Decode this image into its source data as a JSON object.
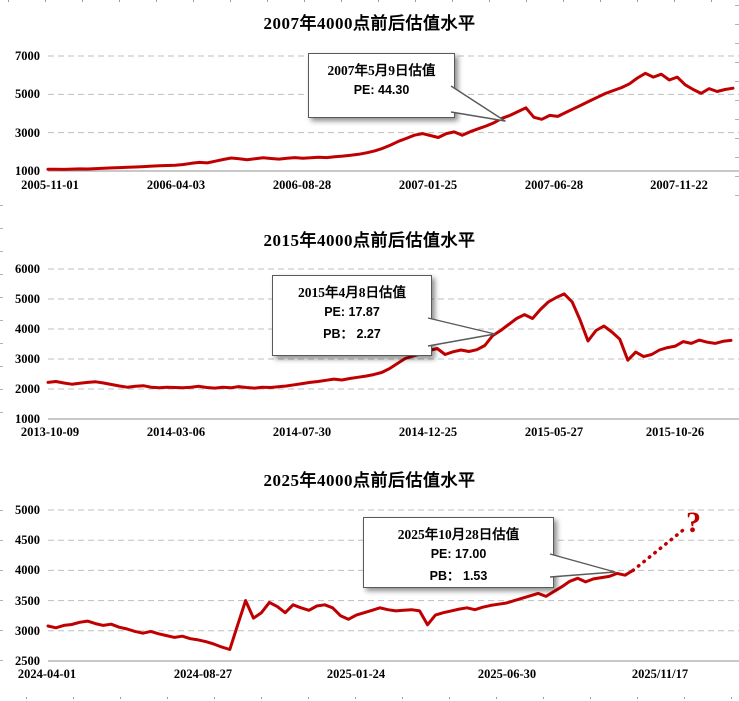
{
  "colors": {
    "line": "#C00000",
    "grid": "#BFBFBF",
    "axis": "#A6A6A6",
    "callout_border": "#595959",
    "question_mark": "#C00000",
    "text": "#000000"
  },
  "chart_data": [
    {
      "id": "chart-2007",
      "type": "line",
      "title": "2007年4000点前后估值水平",
      "ylim": [
        1000,
        7000
      ],
      "y_ticks": [
        7000,
        5000,
        3000,
        1000
      ],
      "x_ticks": [
        "2005-11-01",
        "2006-04-03",
        "2006-08-28",
        "2007-01-25",
        "2007-06-28",
        "2007-11-22"
      ],
      "grid": "dashed-horizontal",
      "values": [
        1090,
        1095,
        1085,
        1100,
        1110,
        1105,
        1125,
        1140,
        1160,
        1175,
        1195,
        1210,
        1230,
        1255,
        1270,
        1285,
        1300,
        1340,
        1400,
        1450,
        1420,
        1510,
        1600,
        1680,
        1640,
        1590,
        1640,
        1690,
        1650,
        1620,
        1660,
        1700,
        1670,
        1690,
        1720,
        1700,
        1740,
        1780,
        1820,
        1870,
        1950,
        2050,
        2180,
        2350,
        2550,
        2700,
        2870,
        2950,
        2850,
        2750,
        2950,
        3040,
        2860,
        3050,
        3200,
        3350,
        3520,
        3750,
        3900,
        4100,
        4300,
        3800,
        3700,
        3900,
        3850,
        4050,
        4250,
        4450,
        4650,
        4850,
        5050,
        5200,
        5350,
        5550,
        5850,
        6100,
        5900,
        6050,
        5750,
        5900,
        5500,
        5250,
        5050,
        5300,
        5150,
        5250,
        5320
      ],
      "annotation": {
        "title": "2007年5月9日估值",
        "metrics": [
          "PE: 44.30"
        ],
        "anchor_value": 3800
      }
    },
    {
      "id": "chart-2015",
      "type": "line",
      "title": "2015年4000点前后估值水平",
      "ylim": [
        1000,
        6000
      ],
      "y_ticks": [
        6000,
        5000,
        4000,
        3000,
        2000,
        1000
      ],
      "x_ticks": [
        "2013-10-09",
        "2014-03-06",
        "2014-07-30",
        "2014-12-25",
        "2015-05-27",
        "2015-10-26"
      ],
      "grid": "dashed-horizontal",
      "values": [
        2220,
        2250,
        2200,
        2160,
        2190,
        2220,
        2240,
        2200,
        2150,
        2100,
        2060,
        2090,
        2110,
        2060,
        2040,
        2060,
        2050,
        2040,
        2060,
        2090,
        2050,
        2030,
        2060,
        2040,
        2080,
        2050,
        2030,
        2060,
        2050,
        2075,
        2100,
        2140,
        2180,
        2220,
        2250,
        2290,
        2330,
        2300,
        2350,
        2390,
        2430,
        2480,
        2550,
        2680,
        2850,
        3020,
        3100,
        3180,
        3280,
        3350,
        3150,
        3240,
        3300,
        3250,
        3310,
        3450,
        3780,
        3950,
        4150,
        4350,
        4480,
        4350,
        4650,
        4900,
        5050,
        5170,
        4900,
        4300,
        3600,
        3950,
        4100,
        3900,
        3660,
        2960,
        3230,
        3080,
        3150,
        3300,
        3380,
        3430,
        3580,
        3520,
        3630,
        3560,
        3520,
        3590,
        3620
      ],
      "annotation": {
        "title": "2015年4月8日估值",
        "metrics": [
          "PE: 17.87",
          "PB：  2.27"
        ],
        "anchor_value": 3870
      }
    },
    {
      "id": "chart-2025",
      "type": "line",
      "title": "2025年4000点前后估值水平",
      "ylim": [
        2500,
        5000
      ],
      "y_ticks": [
        5000,
        4500,
        4000,
        3500,
        3000,
        2500
      ],
      "x_ticks": [
        "2024-04-01",
        "2024-08-27",
        "2025-01-24",
        "2025-06-30",
        "2025/11/17"
      ],
      "grid": "dashed-horizontal",
      "values": [
        3080,
        3050,
        3090,
        3105,
        3140,
        3160,
        3120,
        3090,
        3110,
        3060,
        3030,
        2990,
        2960,
        2990,
        2950,
        2920,
        2890,
        2910,
        2870,
        2850,
        2820,
        2780,
        2730,
        2690,
        3100,
        3500,
        3210,
        3300,
        3470,
        3400,
        3300,
        3430,
        3380,
        3340,
        3410,
        3430,
        3380,
        3250,
        3190,
        3260,
        3300,
        3340,
        3380,
        3350,
        3330,
        3340,
        3350,
        3330,
        3100,
        3260,
        3300,
        3330,
        3360,
        3380,
        3350,
        3390,
        3420,
        3440,
        3460,
        3500,
        3540,
        3580,
        3620,
        3570,
        3650,
        3730,
        3820,
        3870,
        3810,
        3860,
        3880,
        3900,
        3950,
        3920,
        4000
      ],
      "annotation": {
        "title": "2025年10月28日估值",
        "metrics": [
          "PE: 17.00",
          "PB：  1.53"
        ],
        "anchor_value": 3980
      },
      "projection": {
        "style": "dotted",
        "from_value": 4000,
        "end_value": 4720,
        "label": "?"
      }
    }
  ]
}
